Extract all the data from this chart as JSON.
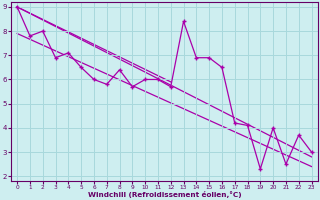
{
  "xlabel": "Windchill (Refroidissement éolien,°C)",
  "bg_color": "#ceeef0",
  "grid_color": "#a8d8dc",
  "line_color": "#aa00aa",
  "spine_color": "#660066",
  "xlim": [
    -0.5,
    23.5
  ],
  "ylim": [
    1.8,
    9.2
  ],
  "xticks": [
    0,
    1,
    2,
    3,
    4,
    5,
    6,
    7,
    8,
    9,
    10,
    11,
    12,
    13,
    14,
    15,
    16,
    17,
    18,
    19,
    20,
    21,
    22,
    23
  ],
  "yticks": [
    2,
    3,
    4,
    5,
    6,
    7,
    8,
    9
  ],
  "data_x": [
    0,
    1,
    2,
    3,
    4,
    5,
    6,
    7,
    8,
    9,
    10,
    11,
    12,
    13,
    14,
    15,
    16,
    17,
    18,
    19,
    20,
    21,
    22,
    23
  ],
  "data_y": [
    9.0,
    7.8,
    8.0,
    6.9,
    7.1,
    6.5,
    6.0,
    5.8,
    6.4,
    5.7,
    6.0,
    6.0,
    5.7,
    8.4,
    6.9,
    6.9,
    6.5,
    4.2,
    4.1,
    2.3,
    4.0,
    2.5,
    3.7,
    3.0
  ],
  "trend1_x": [
    0,
    23
  ],
  "trend1_y": [
    9.0,
    2.8
  ],
  "trend2_x": [
    0,
    23
  ],
  "trend2_y": [
    7.9,
    2.4
  ],
  "trend3_x": [
    0,
    12
  ],
  "trend3_y": [
    9.0,
    5.9
  ]
}
